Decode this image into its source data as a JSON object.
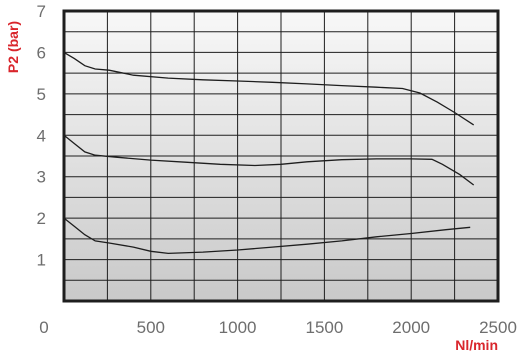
{
  "chart_data": {
    "type": "line",
    "xlabel": "Nl/min",
    "ylabel": "P2 (bar)",
    "xlim": [
      0,
      2500
    ],
    "ylim": [
      0,
      7
    ],
    "x_ticks": [
      {
        "value": 0,
        "label": "0"
      },
      {
        "value": 500,
        "label": "500"
      },
      {
        "value": 1000,
        "label": "1000"
      },
      {
        "value": 1500,
        "label": "1500"
      },
      {
        "value": 2000,
        "label": "2000"
      },
      {
        "value": 2500,
        "label": "2500"
      }
    ],
    "y_ticks": [
      {
        "value": 1,
        "label": "1"
      },
      {
        "value": 2,
        "label": "2"
      },
      {
        "value": 3,
        "label": "3"
      },
      {
        "value": 4,
        "label": "4"
      },
      {
        "value": 5,
        "label": "5"
      },
      {
        "value": 6,
        "label": "6"
      },
      {
        "value": 7,
        "label": "7"
      }
    ],
    "grid": true,
    "grid_x_step": 250,
    "grid_y_step": 0.5,
    "colors": {
      "background_top": "#f8f8f8",
      "background_bottom": "#c9c9c9",
      "lines": "#1e1e1e",
      "axis_label": "#d9262c",
      "tick_label": "#6e6e6e"
    },
    "series": [
      {
        "points": [
          [
            0,
            6.0
          ],
          [
            60,
            5.85
          ],
          [
            120,
            5.68
          ],
          [
            180,
            5.6
          ],
          [
            260,
            5.57
          ],
          [
            400,
            5.45
          ],
          [
            600,
            5.38
          ],
          [
            800,
            5.34
          ],
          [
            1000,
            5.31
          ],
          [
            1200,
            5.28
          ],
          [
            1400,
            5.24
          ],
          [
            1600,
            5.2
          ],
          [
            1800,
            5.16
          ],
          [
            1950,
            5.13
          ],
          [
            2050,
            5.02
          ],
          [
            2150,
            4.8
          ],
          [
            2250,
            4.55
          ],
          [
            2360,
            4.25
          ]
        ]
      },
      {
        "points": [
          [
            0,
            4.0
          ],
          [
            60,
            3.8
          ],
          [
            120,
            3.6
          ],
          [
            180,
            3.52
          ],
          [
            300,
            3.47
          ],
          [
            500,
            3.4
          ],
          [
            700,
            3.35
          ],
          [
            900,
            3.3
          ],
          [
            1100,
            3.27
          ],
          [
            1250,
            3.3
          ],
          [
            1400,
            3.36
          ],
          [
            1600,
            3.41
          ],
          [
            1800,
            3.43
          ],
          [
            2000,
            3.43
          ],
          [
            2120,
            3.42
          ],
          [
            2180,
            3.3
          ],
          [
            2280,
            3.05
          ],
          [
            2360,
            2.8
          ]
        ]
      },
      {
        "points": [
          [
            0,
            2.0
          ],
          [
            60,
            1.8
          ],
          [
            120,
            1.6
          ],
          [
            180,
            1.45
          ],
          [
            260,
            1.4
          ],
          [
            400,
            1.3
          ],
          [
            500,
            1.2
          ],
          [
            600,
            1.15
          ],
          [
            800,
            1.18
          ],
          [
            1000,
            1.23
          ],
          [
            1200,
            1.3
          ],
          [
            1400,
            1.37
          ],
          [
            1600,
            1.45
          ],
          [
            1800,
            1.55
          ],
          [
            2000,
            1.63
          ],
          [
            2200,
            1.72
          ],
          [
            2340,
            1.78
          ]
        ]
      }
    ]
  }
}
